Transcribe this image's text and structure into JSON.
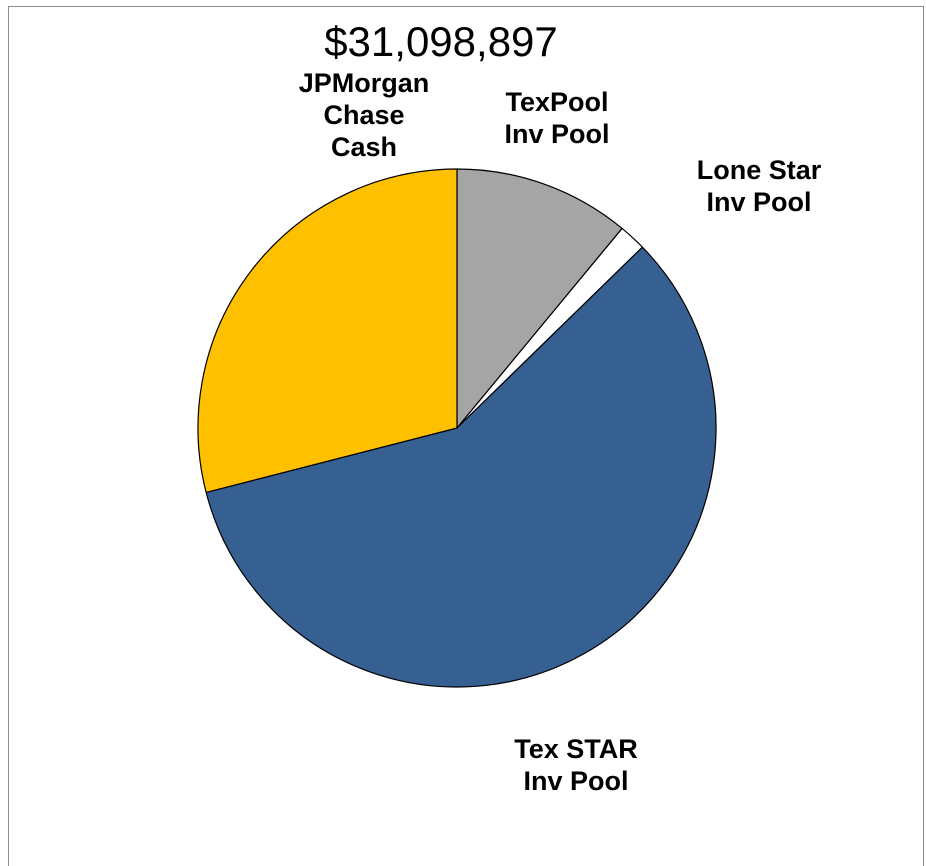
{
  "chart_data": {
    "type": "pie",
    "title": "$31,098,897",
    "legend": "none",
    "slices": [
      {
        "name": "TexPool Inv Pool",
        "label_lines": [
          "TexPool",
          "Inv Pool"
        ],
        "value": 11.0,
        "color": "#A5A5A5"
      },
      {
        "name": "Lone Star Inv Pool",
        "label_lines": [
          "Lone Star",
          "Inv Pool"
        ],
        "value": 1.7,
        "color": "#FFFFFF"
      },
      {
        "name": "Tex STAR Inv Pool",
        "label_lines": [
          "Tex STAR",
          "Inv Pool"
        ],
        "value": 58.3,
        "color": "#376092"
      },
      {
        "name": "JPMorgan Chase Cash",
        "label_lines": [
          "JPMorgan",
          "Chase",
          "Cash"
        ],
        "value": 29.0,
        "color": "#FFC000"
      }
    ]
  }
}
